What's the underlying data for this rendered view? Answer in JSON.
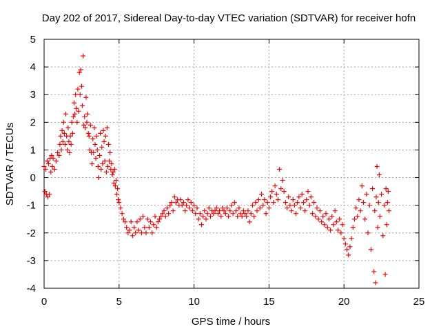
{
  "chart_data": {
    "type": "scatter",
    "title": "Day 202 of 2017, Sidereal Day-to-day VTEC variation (SDTVAR) for receiver hofn",
    "xlabel": "GPS time / hours",
    "ylabel": "SDTVAR / TECUs",
    "xlim": [
      0,
      25
    ],
    "ylim": [
      -4,
      5
    ],
    "xticks": [
      0,
      5,
      10,
      15,
      20,
      25
    ],
    "yticks": [
      -4,
      -3,
      -2,
      -1,
      0,
      1,
      2,
      3,
      4,
      5
    ],
    "grid": true,
    "marker": "+",
    "color": "#ff0000",
    "series": [
      {
        "name": "SDTVAR",
        "points": [
          [
            0.0,
            0.4
          ],
          [
            0.05,
            -0.5
          ],
          [
            0.1,
            0.3
          ],
          [
            0.15,
            -0.6
          ],
          [
            0.2,
            0.6
          ],
          [
            0.25,
            -0.7
          ],
          [
            0.3,
            0.5
          ],
          [
            0.35,
            -0.6
          ],
          [
            0.4,
            0.7
          ],
          [
            0.45,
            0.2
          ],
          [
            0.5,
            0.8
          ],
          [
            0.55,
            0.4
          ],
          [
            0.6,
            0.7
          ],
          [
            0.7,
            0.3
          ],
          [
            0.8,
            0.6
          ],
          [
            0.9,
            0.9
          ],
          [
            1.0,
            0.8
          ],
          [
            1.05,
            1.2
          ],
          [
            1.1,
            1.5
          ],
          [
            1.15,
            1.0
          ],
          [
            1.2,
            1.7
          ],
          [
            1.25,
            1.3
          ],
          [
            1.3,
            2.0
          ],
          [
            1.35,
            1.6
          ],
          [
            1.4,
            1.2
          ],
          [
            1.45,
            2.3
          ],
          [
            1.5,
            1.5
          ],
          [
            1.55,
            1.0
          ],
          [
            1.6,
            1.8
          ],
          [
            1.65,
            1.3
          ],
          [
            1.7,
            0.9
          ],
          [
            1.75,
            1.5
          ],
          [
            1.8,
            1.2
          ],
          [
            1.85,
            2.0
          ],
          [
            1.9,
            1.6
          ],
          [
            1.95,
            2.2
          ],
          [
            2.0,
            2.7
          ],
          [
            2.05,
            2.3
          ],
          [
            2.1,
            3.0
          ],
          [
            2.15,
            2.5
          ],
          [
            2.2,
            2.0
          ],
          [
            2.25,
            3.2
          ],
          [
            2.3,
            2.4
          ],
          [
            2.35,
            3.8
          ],
          [
            2.4,
            3.0
          ],
          [
            2.45,
            3.9
          ],
          [
            2.5,
            3.3
          ],
          [
            2.55,
            2.6
          ],
          [
            2.6,
            4.4
          ],
          [
            2.65,
            1.9
          ],
          [
            2.7,
            2.2
          ],
          [
            2.75,
            1.8
          ],
          [
            2.8,
            2.9
          ],
          [
            2.85,
            2.0
          ],
          [
            2.9,
            2.3
          ],
          [
            2.95,
            1.6
          ],
          [
            3.0,
            1.5
          ],
          [
            3.05,
            1.0
          ],
          [
            3.1,
            1.9
          ],
          [
            3.15,
            0.9
          ],
          [
            3.2,
            0.5
          ],
          [
            3.25,
            1.4
          ],
          [
            3.3,
            0.9
          ],
          [
            3.35,
            1.8
          ],
          [
            3.4,
            1.2
          ],
          [
            3.45,
            0.7
          ],
          [
            3.5,
            1.5
          ],
          [
            3.55,
            1.0
          ],
          [
            3.6,
            0.4
          ],
          [
            3.65,
            0.0
          ],
          [
            3.7,
            0.8
          ],
          [
            3.75,
            1.6
          ],
          [
            3.8,
            0.3
          ],
          [
            3.85,
            1.1
          ],
          [
            3.9,
            0.5
          ],
          [
            3.95,
            1.7
          ],
          [
            4.0,
            1.3
          ],
          [
            4.05,
            0.6
          ],
          [
            4.1,
            1.5
          ],
          [
            4.15,
            0.2
          ],
          [
            4.2,
            1.8
          ],
          [
            4.25,
            0.4
          ],
          [
            4.3,
            1.2
          ],
          [
            4.35,
            0.6
          ],
          [
            4.4,
            0.9
          ],
          [
            4.45,
            0.3
          ],
          [
            4.5,
            0.5
          ],
          [
            4.55,
            0.1
          ],
          [
            4.6,
            0.2
          ],
          [
            4.65,
            -0.2
          ],
          [
            4.7,
            0.3
          ],
          [
            4.75,
            -0.3
          ],
          [
            4.8,
            -0.1
          ],
          [
            4.85,
            -0.6
          ],
          [
            4.9,
            -0.4
          ],
          [
            4.95,
            -0.8
          ],
          [
            5.0,
            -0.9
          ],
          [
            5.1,
            -1.1
          ],
          [
            5.2,
            -1.3
          ],
          [
            5.3,
            -1.5
          ],
          [
            5.4,
            -1.6
          ],
          [
            5.5,
            -1.8
          ],
          [
            5.6,
            -2.0
          ],
          [
            5.7,
            -1.9
          ],
          [
            5.8,
            -1.6
          ],
          [
            5.9,
            -2.1
          ],
          [
            6.0,
            -1.8
          ],
          [
            6.1,
            -2.0
          ],
          [
            6.2,
            -1.6
          ],
          [
            6.3,
            -1.9
          ],
          [
            6.4,
            -1.5
          ],
          [
            6.5,
            -2.0
          ],
          [
            6.6,
            -1.4
          ],
          [
            6.7,
            -1.8
          ],
          [
            6.8,
            -2.0
          ],
          [
            6.9,
            -1.5
          ],
          [
            7.0,
            -1.8
          ],
          [
            7.1,
            -1.6
          ],
          [
            7.2,
            -2.0
          ],
          [
            7.3,
            -1.7
          ],
          [
            7.4,
            -1.4
          ],
          [
            7.5,
            -1.8
          ],
          [
            7.6,
            -1.6
          ],
          [
            7.7,
            -1.5
          ],
          [
            7.8,
            -1.4
          ],
          [
            7.9,
            -1.3
          ],
          [
            8.0,
            -1.2
          ],
          [
            8.1,
            -1.4
          ],
          [
            8.2,
            -1.1
          ],
          [
            8.3,
            -1.3
          ],
          [
            8.4,
            -1.0
          ],
          [
            8.5,
            -0.9
          ],
          [
            8.6,
            -1.2
          ],
          [
            8.7,
            -0.7
          ],
          [
            8.8,
            -0.9
          ],
          [
            8.9,
            -0.8
          ],
          [
            9.0,
            -1.0
          ],
          [
            9.1,
            -0.8
          ],
          [
            9.2,
            -1.0
          ],
          [
            9.3,
            -0.9
          ],
          [
            9.4,
            -1.2
          ],
          [
            9.5,
            -1.0
          ],
          [
            9.6,
            -0.8
          ],
          [
            9.7,
            -1.1
          ],
          [
            9.8,
            -0.9
          ],
          [
            9.9,
            -1.2
          ],
          [
            10.0,
            -1.0
          ],
          [
            10.1,
            -1.3
          ],
          [
            10.2,
            -1.1
          ],
          [
            10.3,
            -1.5
          ],
          [
            10.4,
            -1.3
          ],
          [
            10.5,
            -1.7
          ],
          [
            10.6,
            -1.4
          ],
          [
            10.7,
            -1.2
          ],
          [
            10.8,
            -1.5
          ],
          [
            10.9,
            -1.3
          ],
          [
            11.0,
            -1.1
          ],
          [
            11.1,
            -1.4
          ],
          [
            11.2,
            -1.2
          ],
          [
            11.3,
            -1.3
          ],
          [
            11.4,
            -1.2
          ],
          [
            11.5,
            -1.1
          ],
          [
            11.6,
            -1.3
          ],
          [
            11.7,
            -1.2
          ],
          [
            11.8,
            -1.4
          ],
          [
            11.9,
            -1.1
          ],
          [
            12.0,
            -1.2
          ],
          [
            12.1,
            -1.3
          ],
          [
            12.2,
            -1.1
          ],
          [
            12.3,
            -1.4
          ],
          [
            12.4,
            -1.2
          ],
          [
            12.5,
            -1.0
          ],
          [
            12.6,
            -1.3
          ],
          [
            12.7,
            -0.9
          ],
          [
            12.8,
            -1.2
          ],
          [
            12.9,
            -1.4
          ],
          [
            13.0,
            -1.1
          ],
          [
            13.1,
            -1.3
          ],
          [
            13.2,
            -1.4
          ],
          [
            13.3,
            -1.2
          ],
          [
            13.4,
            -1.3
          ],
          [
            13.5,
            -1.4
          ],
          [
            13.6,
            -1.2
          ],
          [
            13.7,
            -1.6
          ],
          [
            13.8,
            -1.3
          ],
          [
            13.9,
            -1.0
          ],
          [
            14.0,
            -1.4
          ],
          [
            14.1,
            -0.9
          ],
          [
            14.2,
            -1.2
          ],
          [
            14.3,
            -0.8
          ],
          [
            14.4,
            -1.1
          ],
          [
            14.5,
            -0.6
          ],
          [
            14.6,
            -1.0
          ],
          [
            14.7,
            -0.8
          ],
          [
            14.8,
            -1.3
          ],
          [
            14.9,
            -0.9
          ],
          [
            15.0,
            -1.1
          ],
          [
            15.1,
            -0.7
          ],
          [
            15.2,
            -0.5
          ],
          [
            15.3,
            -0.9
          ],
          [
            15.4,
            -0.3
          ],
          [
            15.5,
            -0.6
          ],
          [
            15.6,
            -0.8
          ],
          [
            15.7,
            0.3
          ],
          [
            15.8,
            -0.4
          ],
          [
            15.9,
            -0.1
          ],
          [
            16.0,
            -0.5
          ],
          [
            16.1,
            -0.9
          ],
          [
            16.2,
            -1.1
          ],
          [
            16.3,
            -0.7
          ],
          [
            16.4,
            -1.0
          ],
          [
            16.5,
            -1.2
          ],
          [
            16.6,
            -0.8
          ],
          [
            16.7,
            -1.0
          ],
          [
            16.8,
            -1.3
          ],
          [
            16.9,
            -0.9
          ],
          [
            17.0,
            -0.7
          ],
          [
            17.1,
            -1.1
          ],
          [
            17.2,
            -0.6
          ],
          [
            17.3,
            -0.9
          ],
          [
            17.4,
            -1.2
          ],
          [
            17.5,
            -0.8
          ],
          [
            17.6,
            -0.5
          ],
          [
            17.7,
            -1.0
          ],
          [
            17.8,
            -0.7
          ],
          [
            17.9,
            -1.3
          ],
          [
            18.0,
            -0.9
          ],
          [
            18.1,
            -1.4
          ],
          [
            18.2,
            -1.1
          ],
          [
            18.3,
            -1.5
          ],
          [
            18.4,
            -1.2
          ],
          [
            18.5,
            -1.6
          ],
          [
            18.6,
            -1.4
          ],
          [
            18.7,
            -1.7
          ],
          [
            18.8,
            -1.3
          ],
          [
            18.9,
            -1.8
          ],
          [
            19.0,
            -1.5
          ],
          [
            19.1,
            -1.9
          ],
          [
            19.2,
            -1.4
          ],
          [
            19.3,
            -1.7
          ],
          [
            19.4,
            -1.2
          ],
          [
            19.5,
            -1.6
          ],
          [
            19.6,
            -1.9
          ],
          [
            19.7,
            -1.5
          ],
          [
            19.8,
            -2.0
          ],
          [
            19.9,
            -1.7
          ],
          [
            20.0,
            -2.2
          ],
          [
            20.1,
            -2.4
          ],
          [
            20.2,
            -2.6
          ],
          [
            20.3,
            -2.8
          ],
          [
            20.4,
            -2.5
          ],
          [
            20.5,
            -2.2
          ],
          [
            20.6,
            -1.8
          ],
          [
            20.7,
            -1.5
          ],
          [
            20.8,
            -1.1
          ],
          [
            20.9,
            -1.4
          ],
          [
            21.0,
            -0.8
          ],
          [
            21.1,
            -1.2
          ],
          [
            21.2,
            -0.3
          ],
          [
            21.3,
            -0.9
          ],
          [
            21.4,
            -1.5
          ],
          [
            21.5,
            -0.6
          ],
          [
            21.6,
            -2.0
          ],
          [
            21.7,
            -1.0
          ],
          [
            21.8,
            -2.6
          ],
          [
            21.9,
            -0.4
          ],
          [
            22.0,
            -3.4
          ],
          [
            22.05,
            -1.2
          ],
          [
            22.1,
            -3.8
          ],
          [
            22.15,
            -0.7
          ],
          [
            22.2,
            0.4
          ],
          [
            22.25,
            -1.8
          ],
          [
            22.3,
            -0.9
          ],
          [
            22.35,
            0.1
          ],
          [
            22.4,
            -1.4
          ],
          [
            22.5,
            -0.6
          ],
          [
            22.6,
            -2.1
          ],
          [
            22.7,
            -1.0
          ],
          [
            22.75,
            -3.5
          ],
          [
            22.8,
            -0.4
          ],
          [
            22.85,
            -1.7
          ],
          [
            22.9,
            -0.9
          ],
          [
            22.95,
            -0.5
          ],
          [
            23.0,
            -1.2
          ]
        ]
      }
    ]
  }
}
